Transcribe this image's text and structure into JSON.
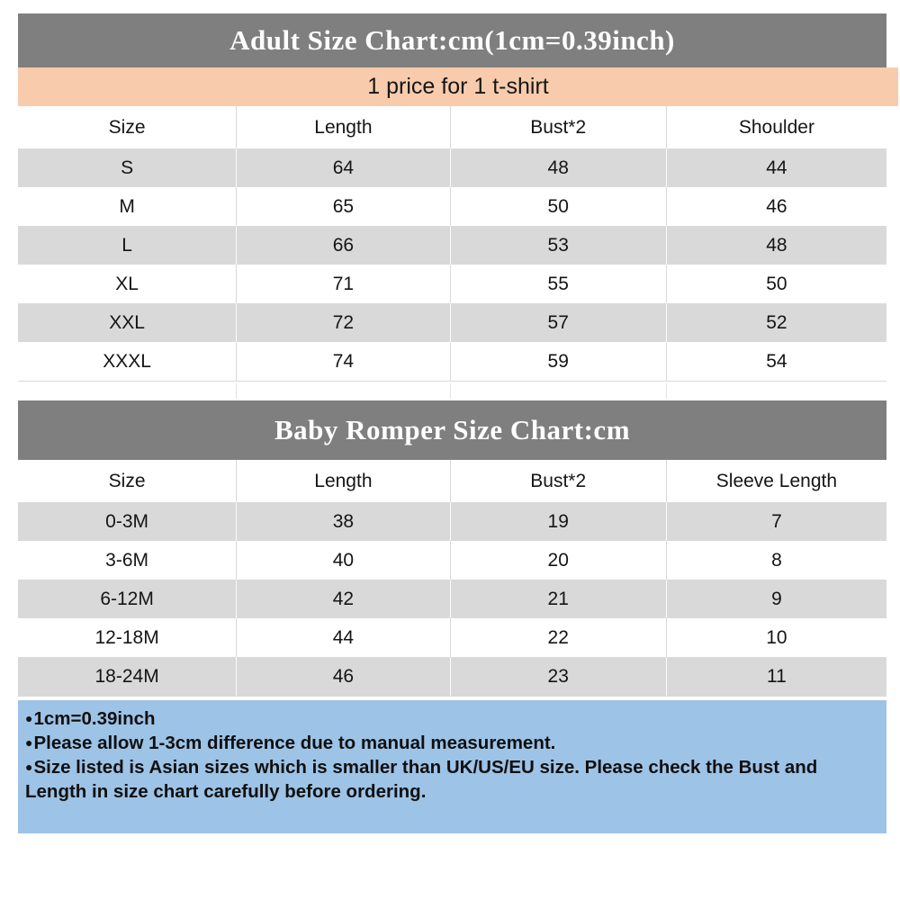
{
  "colors": {
    "header_bg": "#7f7f7f",
    "header_text": "#ffffff",
    "banner_bg": "#f8cbad",
    "row_bg": "#ffffff",
    "row_alt_bg": "#d9d9d9",
    "notes_bg": "#9dc3e6",
    "grid_line": "#d9d9d9",
    "text": "#141414"
  },
  "adult_chart": {
    "title": "Adult Size Chart:cm(1cm=0.39inch)",
    "banner": "1 price for 1 t-shirt",
    "columns": [
      "Size",
      "Length",
      "Bust*2",
      "Shoulder"
    ],
    "rows": [
      [
        "S",
        "64",
        "48",
        "44"
      ],
      [
        "M",
        "65",
        "50",
        "46"
      ],
      [
        "L",
        "66",
        "53",
        "48"
      ],
      [
        "XL",
        "71",
        "55",
        "50"
      ],
      [
        "XXL",
        "72",
        "57",
        "52"
      ],
      [
        "XXXL",
        "74",
        "59",
        "54"
      ]
    ]
  },
  "baby_chart": {
    "title": "Baby Romper Size Chart:cm",
    "columns": [
      "Size",
      "Length",
      "Bust*2",
      "Sleeve Length"
    ],
    "rows": [
      [
        "0-3M",
        "38",
        "19",
        "7"
      ],
      [
        "3-6M",
        "40",
        "20",
        "8"
      ],
      [
        "6-12M",
        "42",
        "21",
        "9"
      ],
      [
        "12-18M",
        "44",
        "22",
        "10"
      ],
      [
        "18-24M",
        "46",
        "23",
        "11"
      ]
    ]
  },
  "notes": {
    "bullet": "●",
    "items": [
      "1cm=0.39inch",
      "Please allow 1-3cm difference due to manual measurement.",
      "Size listed is Asian sizes which is smaller than UK/US/EU size. Please check the Bust and Length in size chart carefully before ordering."
    ]
  }
}
